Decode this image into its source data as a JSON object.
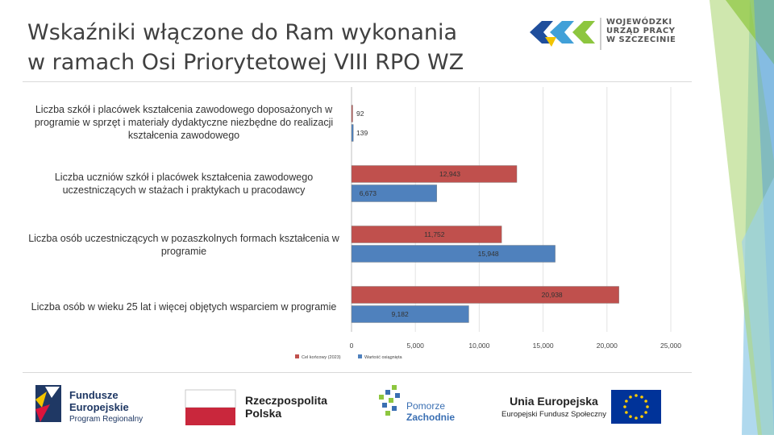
{
  "slide": {
    "title_line1": "Wskaźniki włączone do Ram wykonania",
    "title_line2": "w ramach Osi Priorytetowej VIII RPO WZ"
  },
  "header_logo": {
    "name": "wup-logo",
    "line1": "WOJEWÓDZKI",
    "line2": "URZĄD PRACY",
    "line3": "W SZCZECINIE"
  },
  "chart_data": {
    "type": "bar",
    "orientation": "horizontal",
    "categories": [
      "Liczba szkół i placówek kształcenia zawodowego doposażonych w programie w sprzęt i materiały dydaktyczne niezbędne do realizacji kształcenia zawodowego",
      "Liczba uczniów szkół i placówek kształcenia zawodowego uczestniczących w stażach i praktykach u pracodawcy",
      "Liczba osób uczestniczących w pozaszkolnych formach kształcenia w programie",
      "Liczba osób w wieku 25 lat i więcej objętych wsparciem w programie"
    ],
    "series": [
      {
        "name": "Cel końcowy (2023)",
        "color": "#c0504d",
        "values": [
          92,
          12943,
          11752,
          20938
        ],
        "labels": [
          "92",
          "12,943",
          "11,752",
          "20,938"
        ]
      },
      {
        "name": "Wartość osiągnięta",
        "color": "#4f81bd",
        "values": [
          139,
          6673,
          15948,
          9182
        ],
        "labels": [
          "139",
          "6,673",
          "15,948",
          "9,182"
        ]
      }
    ],
    "xlim": [
      0,
      25000
    ],
    "xticks": [
      0,
      5000,
      10000,
      15000,
      20000,
      25000
    ],
    "xtick_labels": [
      "0",
      "5,000",
      "10,000",
      "15,000",
      "20,000",
      "25,000"
    ],
    "grid": true,
    "legend_position": "bottom-left"
  },
  "footer": {
    "fe_line1": "Fundusze",
    "fe_line2": "Europejskie",
    "fe_sub": "Program Regionalny",
    "rp_line1": "Rzeczpospolita",
    "rp_line2": "Polska",
    "pz_line1": "Pomorze",
    "pz_line2": "Zachodnie",
    "ue_title": "Unia Europejska",
    "ue_sub": "Europejski Fundusz Społeczny",
    "colors": {
      "navy": "#1f3864",
      "poland_red": "#dc143c",
      "eu_blue": "#003399",
      "eu_star": "#ffcc00"
    }
  }
}
